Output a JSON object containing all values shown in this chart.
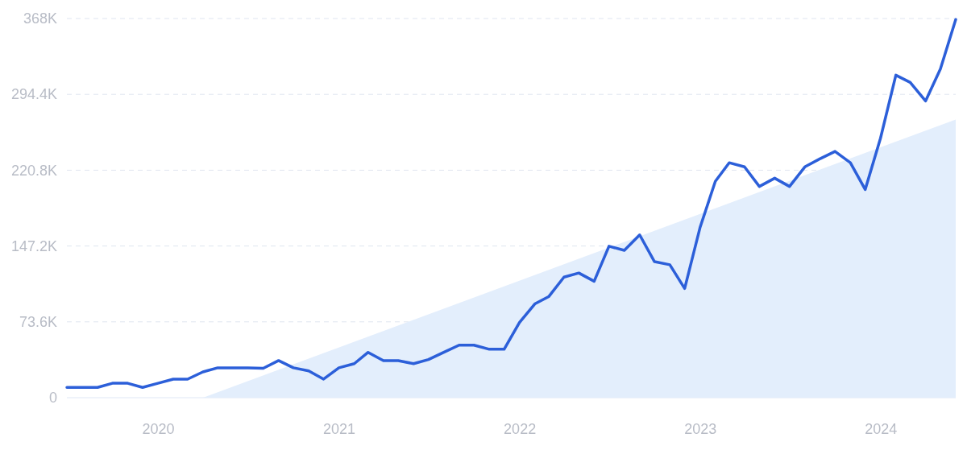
{
  "chart_data": {
    "type": "line",
    "x": [
      "2019-07",
      "2019-08",
      "2019-09",
      "2019-10",
      "2019-11",
      "2019-12",
      "2020-01",
      "2020-02",
      "2020-03",
      "2020-04",
      "2020-05",
      "2020-06",
      "2020-07",
      "2020-08",
      "2020-09",
      "2020-10",
      "2020-11",
      "2020-12",
      "2021-01",
      "2021-02",
      "2021-03",
      "2021-04",
      "2021-05",
      "2021-06",
      "2021-07",
      "2021-08",
      "2021-09",
      "2021-10",
      "2021-11",
      "2021-12",
      "2022-01",
      "2022-02",
      "2022-03",
      "2022-04",
      "2022-05",
      "2022-06",
      "2022-07",
      "2022-08",
      "2022-09",
      "2022-10",
      "2022-11",
      "2022-12",
      "2023-01",
      "2023-02",
      "2023-03",
      "2023-04",
      "2023-05",
      "2023-06",
      "2023-07",
      "2023-08",
      "2023-09",
      "2023-10",
      "2023-11",
      "2023-12",
      "2024-01",
      "2024-02",
      "2024-03",
      "2024-04",
      "2024-05",
      "2024-06"
    ],
    "series": [
      {
        "type": "area",
        "color": "#e3eefc",
        "x": [
          "2020-04",
          "2024-06"
        ],
        "values": [
          0,
          270000
        ]
      },
      {
        "color": "#2c5fd9",
        "values": [
          10000,
          10000,
          10000,
          14000,
          14000,
          10000,
          14000,
          18000,
          18000,
          25000,
          29000,
          29000,
          29000,
          28500,
          36000,
          29000,
          26000,
          18000,
          29000,
          33000,
          44000,
          36000,
          36000,
          33000,
          37000,
          44000,
          51000,
          51000,
          47000,
          47000,
          73000,
          91000,
          98000,
          117000,
          121000,
          113000,
          147000,
          143000,
          158000,
          132000,
          129000,
          106000,
          165000,
          210000,
          228000,
          224000,
          205000,
          213000,
          205000,
          224000,
          232000,
          239000,
          228000,
          202000,
          252000,
          313000,
          306000,
          288000,
          319000,
          367000
        ]
      }
    ],
    "xlim": [
      "2019-07",
      "2024-06"
    ],
    "xticks": [
      "2020",
      "2021",
      "2022",
      "2023",
      "2024"
    ],
    "ylim": [
      0,
      368000
    ],
    "yticks": [
      0,
      {
        "value": 73600,
        "label": "73.6K"
      },
      {
        "value": 147200,
        "label": "147.2K"
      },
      {
        "value": 220800,
        "label": "220.8K"
      },
      {
        "value": 294400,
        "label": "294.4K"
      },
      {
        "value": 368000,
        "label": "368K"
      }
    ],
    "grid": "y",
    "marker": "none",
    "line_style": "solid"
  }
}
